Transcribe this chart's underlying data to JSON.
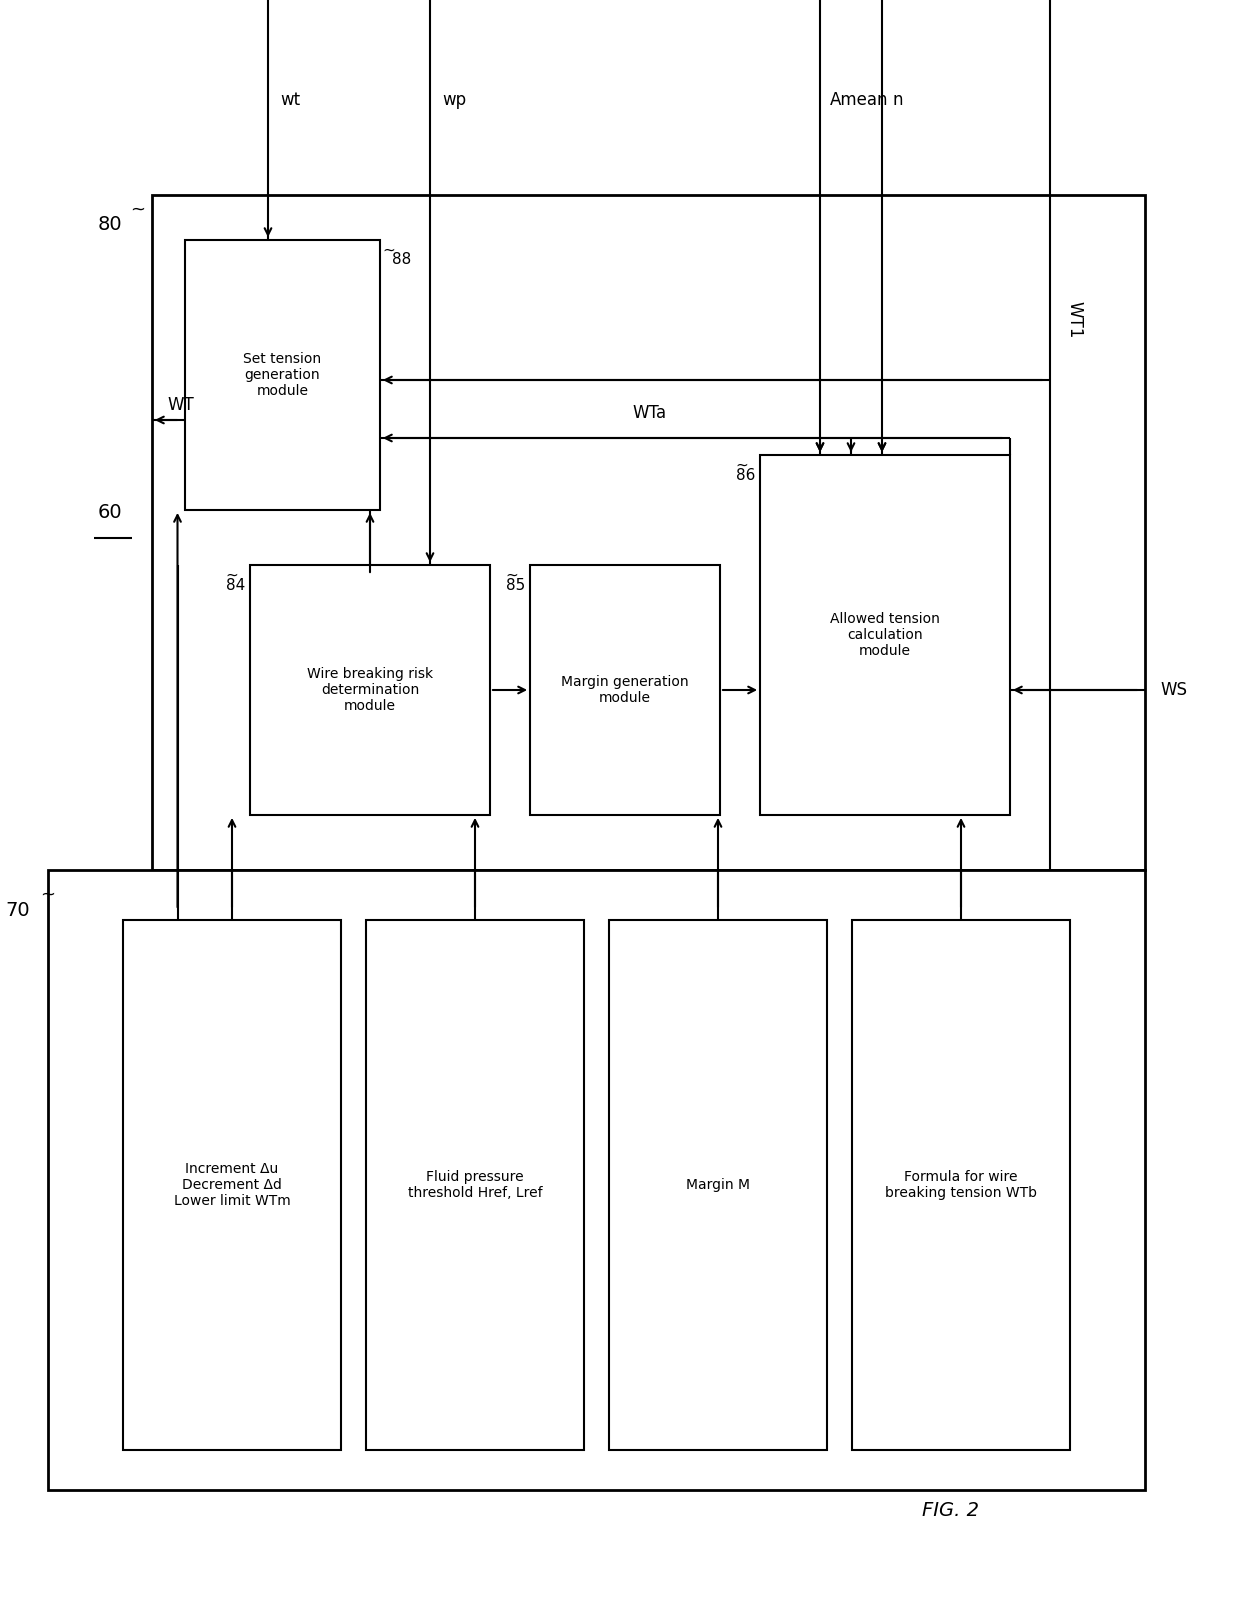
{
  "bg_color": "#ffffff",
  "line_color": "#000000",
  "figure_label": "FIG. 2",
  "box80_label": "80",
  "box60_label": "60",
  "box70_label": "70",
  "box88_label": "88",
  "box84_label": "84",
  "box85_label": "85",
  "box86_label": "86",
  "module_set_tension": "Set tension\ngeneration\nmodule",
  "module_wire_breaking": "Wire breaking risk\ndetermination\nmodule",
  "module_margin": "Margin generation\nmodule",
  "module_allowed": "Allowed tension\ncalculation\nmodule",
  "box_increment": "Increment Δu\nDecrement Δd\nLower limit WTm",
  "box_fluid": "Fluid pressure\nthreshold Href, Lref",
  "box_margin": "Margin M",
  "box_formula": "Formula for wire\nbreaking tension WTb",
  "signal_wt": "wt",
  "signal_wp": "wp",
  "signal_amean": "Amean",
  "signal_n": "n",
  "signal_WT": "WT",
  "signal_WT1": "WT1",
  "signal_WTa": "WTa",
  "signal_WS": "WS",
  "fig_w": 12.4,
  "fig_h": 16.07,
  "dpi": 100
}
